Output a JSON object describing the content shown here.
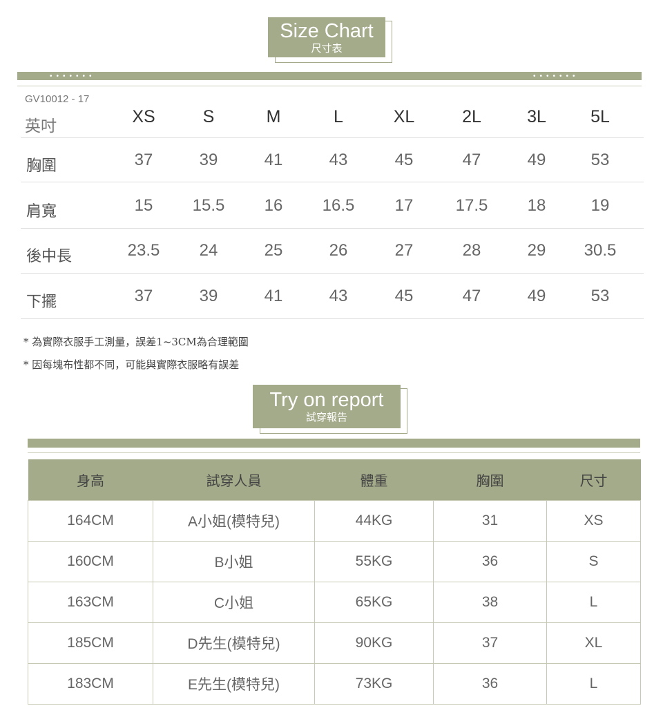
{
  "size_chart": {
    "title_en": "Size Chart",
    "title_zh": "尺寸表",
    "dots": "•••••••",
    "product_code": "GV10012 - 17",
    "unit": "英吋",
    "sizes": [
      "XS",
      "S",
      "M",
      "L",
      "XL",
      "2L",
      "3L",
      "5L"
    ],
    "rows": [
      {
        "label": "胸圍",
        "values": [
          "37",
          "39",
          "41",
          "43",
          "45",
          "47",
          "49",
          "53"
        ]
      },
      {
        "label": "肩寬",
        "values": [
          "15",
          "15.5",
          "16",
          "16.5",
          "17",
          "17.5",
          "18",
          "19"
        ]
      },
      {
        "label": "後中長",
        "values": [
          "23.5",
          "24",
          "25",
          "26",
          "27",
          "28",
          "29",
          "30.5"
        ]
      },
      {
        "label": "下擺",
        "values": [
          "37",
          "39",
          "41",
          "43",
          "45",
          "47",
          "49",
          "53"
        ]
      }
    ],
    "notes": [
      "* 為實際衣服手工測量，誤差1~3CM為合理範圍",
      "* 因每塊布性都不同，可能與實際衣服略有誤差"
    ]
  },
  "try_on": {
    "title_en": "Try on report",
    "title_zh": "試穿報告",
    "headers": [
      "身高",
      "試穿人員",
      "體重",
      "胸圍",
      "尺寸"
    ],
    "rows": [
      [
        "164CM",
        "A小姐(模特兒)",
        "44KG",
        "31",
        "XS"
      ],
      [
        "160CM",
        "B小姐",
        "55KG",
        "36",
        "S"
      ],
      [
        "163CM",
        "C小姐",
        "65KG",
        "38",
        "L"
      ],
      [
        "185CM",
        "D先生(模特兒)",
        "90KG",
        "37",
        "XL"
      ],
      [
        "183CM",
        "E先生(模特兒)",
        "73KG",
        "36",
        "L"
      ]
    ]
  },
  "colors": {
    "accent": "#a4ab8a"
  }
}
